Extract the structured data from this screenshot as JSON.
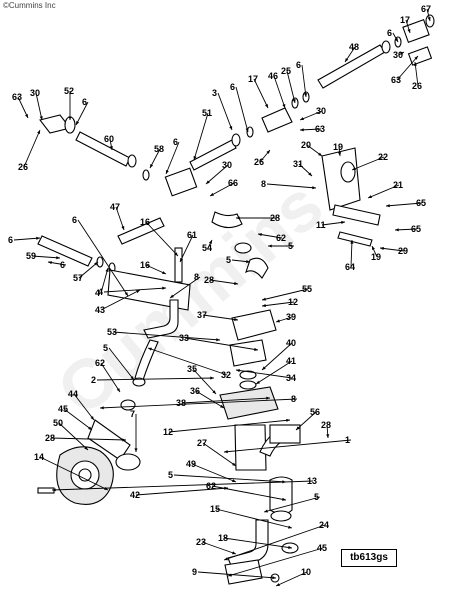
{
  "copyright": "©Cummins Inc",
  "watermark": "Cummins",
  "drawing_ref": "tb613gs",
  "callouts": [
    "67",
    "17",
    "6",
    "48",
    "30",
    "63",
    "26",
    "63",
    "30",
    "52",
    "6",
    "26",
    "60",
    "58",
    "6",
    "3",
    "6",
    "17",
    "46",
    "25",
    "6",
    "51",
    "30",
    "63",
    "26",
    "66",
    "30",
    "20",
    "19",
    "22",
    "31",
    "8",
    "21",
    "11",
    "65",
    "65",
    "64",
    "19",
    "29",
    "6",
    "47",
    "59",
    "6",
    "57",
    "4",
    "43",
    "6",
    "16",
    "61",
    "16",
    "54",
    "28",
    "62",
    "5",
    "5",
    "4",
    "8",
    "28",
    "55",
    "12",
    "37",
    "39",
    "53",
    "33",
    "40",
    "41",
    "34",
    "32",
    "5",
    "62",
    "2",
    "35",
    "36",
    "38",
    "8",
    "44",
    "45",
    "50",
    "28",
    "7",
    "12",
    "56",
    "28",
    "1",
    "27",
    "49",
    "5",
    "13",
    "14",
    "42",
    "62",
    "5",
    "15",
    "24",
    "23",
    "18",
    "45",
    "9",
    "10"
  ]
}
